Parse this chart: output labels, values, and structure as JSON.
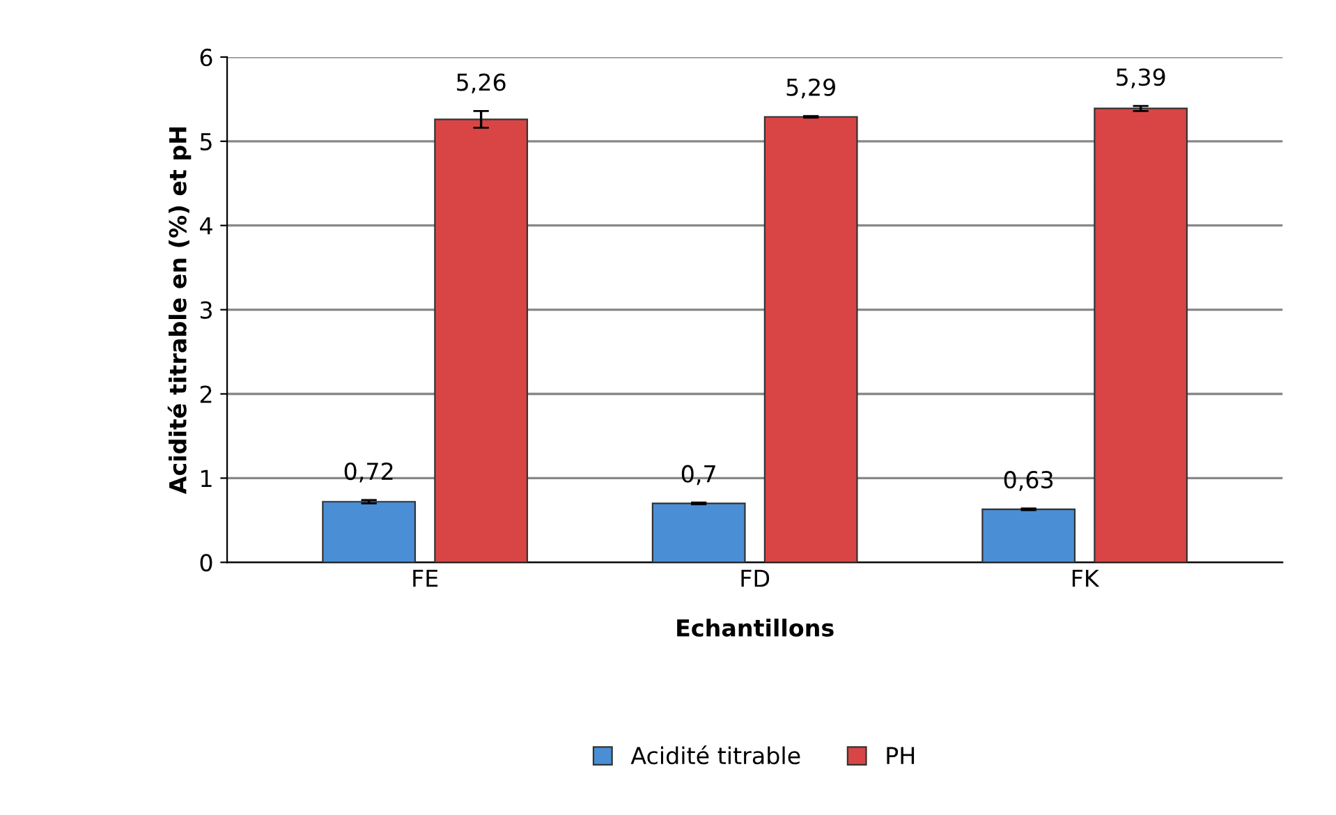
{
  "chart_data": {
    "type": "bar",
    "xlabel": "Echantillons",
    "ylabel": "Acidité titrable en (%) et pH",
    "categories": [
      "FE",
      "FD",
      "FK"
    ],
    "series": [
      {
        "name": "Acidité titrable",
        "color": "#4a8fd6",
        "values": [
          0.72,
          0.7,
          0.63
        ],
        "errors": [
          0.02,
          0.01,
          0.01
        ],
        "value_labels": [
          "0,72",
          "0,7",
          "0,63"
        ]
      },
      {
        "name": "PH",
        "color": "#d94545",
        "values": [
          5.26,
          5.29,
          5.39
        ],
        "errors": [
          0.1,
          0.01,
          0.03
        ],
        "value_labels": [
          "5,26",
          "5,29",
          "5,39"
        ]
      }
    ],
    "ylim": [
      0,
      6
    ],
    "yticks": [
      0,
      1,
      2,
      3,
      4,
      5,
      6
    ],
    "grid": "y",
    "legend": "bottom"
  }
}
